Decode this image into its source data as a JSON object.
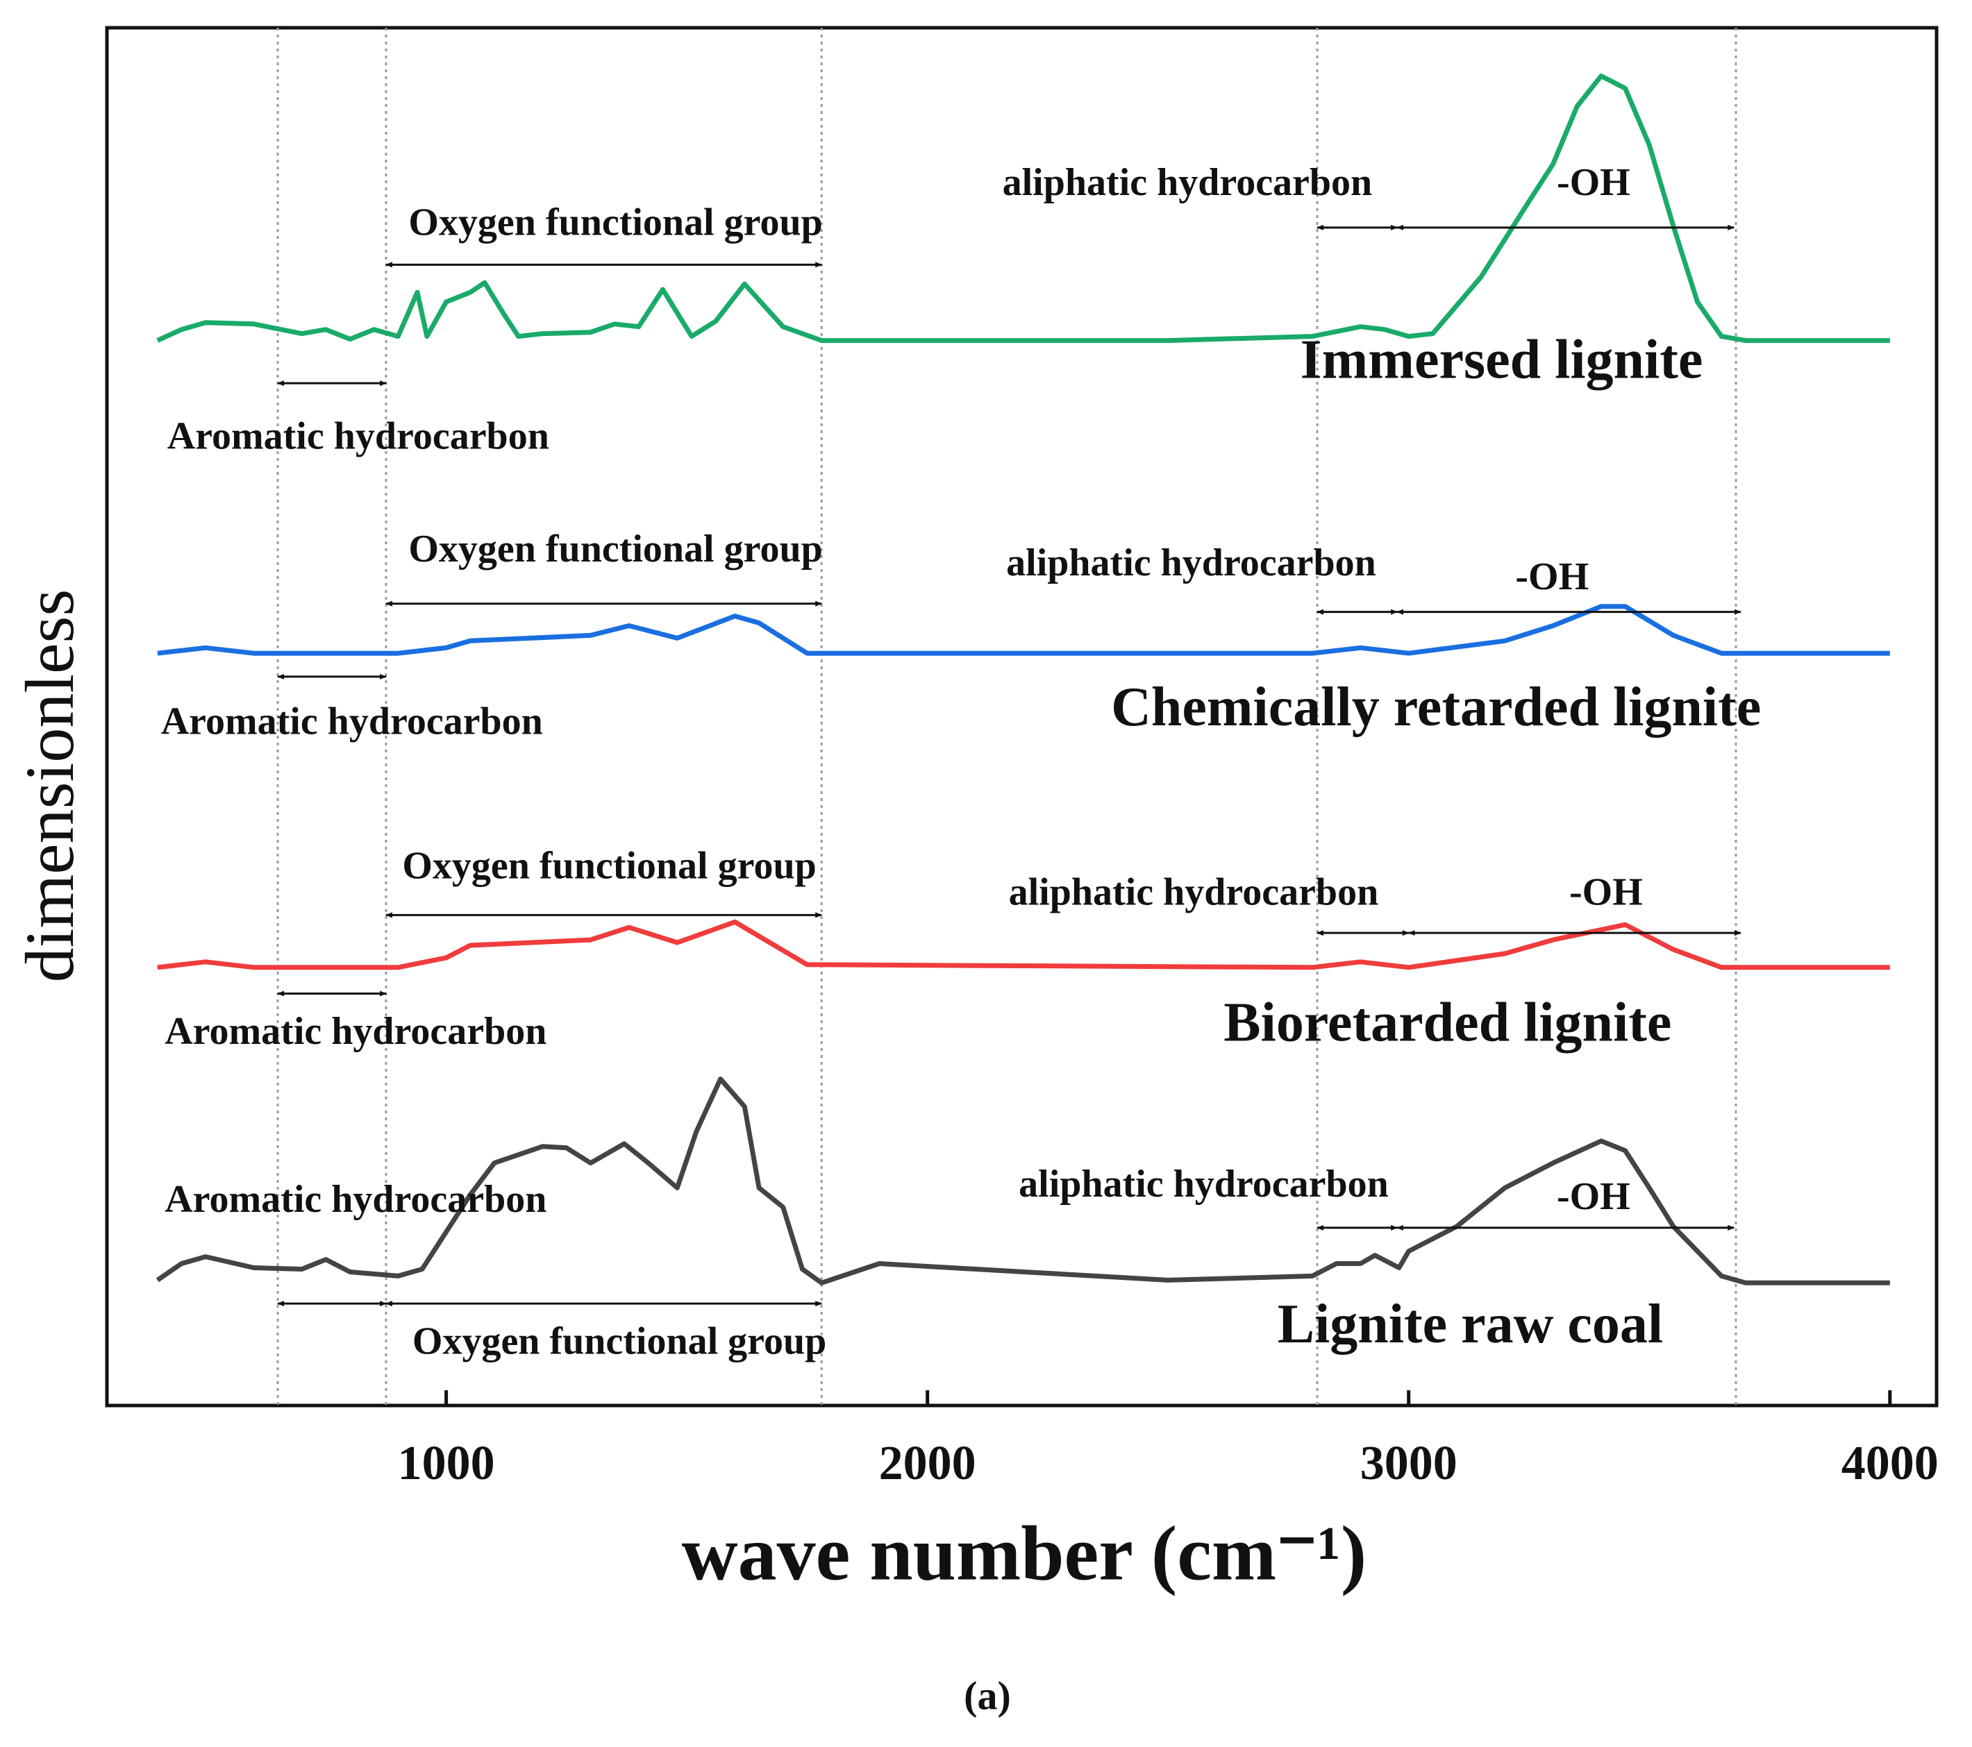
{
  "chart_data": {
    "type": "line",
    "xlabel": "wave number (cm⁻¹)",
    "ylabel": "dimensionless",
    "caption": "(a)",
    "xlim": [
      295,
      4097
    ],
    "ylim": [
      0,
      100
    ],
    "xticks": [
      1000,
      2000,
      3000,
      4000
    ],
    "reference_lines": [
      650,
      875,
      1780,
      2810,
      3680
    ],
    "series": [
      {
        "name": "Immersed lignite",
        "color": "#1aaa6a",
        "x": [
          400,
          450,
          500,
          600,
          700,
          750,
          800,
          850,
          900,
          940,
          960,
          1000,
          1050,
          1080,
          1120,
          1150,
          1200,
          1300,
          1350,
          1400,
          1450,
          1510,
          1560,
          1620,
          1700,
          1780,
          2000,
          2500,
          2800,
          2900,
          2950,
          3000,
          3050,
          3150,
          3250,
          3300,
          3350,
          3400,
          3450,
          3500,
          3550,
          3600,
          3650,
          3700,
          4000
        ],
        "values": [
          77.3,
          78.1,
          78.6,
          78.5,
          77.8,
          78.1,
          77.4,
          78.1,
          77.6,
          80.8,
          77.6,
          80.1,
          80.8,
          81.5,
          79.2,
          77.6,
          77.8,
          77.9,
          78.5,
          78.3,
          81.0,
          77.6,
          78.7,
          81.4,
          78.3,
          77.3,
          77.3,
          77.3,
          77.6,
          78.3,
          78.1,
          77.6,
          77.8,
          81.9,
          87.4,
          90.1,
          94.3,
          96.5,
          95.6,
          91.5,
          85.6,
          80.1,
          77.6,
          77.3,
          77.3
        ],
        "label_at": [
          3193,
          75.5
        ],
        "notes": [
          {
            "text": "Oxygen functional group",
            "at": [
              1352,
              85.6
            ]
          },
          {
            "text": "aliphatic hydrocarbon",
            "at": [
              2540,
              88.5
            ]
          },
          {
            "text": "-OH",
            "at": [
              3384,
              88.5
            ]
          },
          {
            "text": "Aromatic hydrocarbon",
            "at": [
              817,
              70.1
            ]
          }
        ],
        "arrows": [
          [
            875,
            1780,
            82.8
          ],
          [
            2810,
            2976,
            85.5
          ],
          [
            2976,
            3676,
            85.5
          ],
          [
            650,
            875,
            74.2
          ]
        ]
      },
      {
        "name": "Chemically retarded lignite",
        "color": "#1a6fe0",
        "x": [
          400,
          500,
          600,
          900,
          1000,
          1050,
          1300,
          1380,
          1480,
          1600,
          1650,
          1750,
          2800,
          2900,
          3000,
          3200,
          3300,
          3400,
          3450,
          3550,
          3650,
          4000
        ],
        "values": [
          54.6,
          55.0,
          54.6,
          54.6,
          55.0,
          55.5,
          55.9,
          56.6,
          55.7,
          57.3,
          56.8,
          54.6,
          54.6,
          55.0,
          54.6,
          55.5,
          56.6,
          58.0,
          58.0,
          55.9,
          54.6,
          54.6
        ],
        "label_at": [
          3057,
          50.3
        ],
        "notes": [
          {
            "text": "Oxygen functional group",
            "at": [
              1352,
              61.9
            ]
          },
          {
            "text": "aliphatic hydrocarbon",
            "at": [
              2548,
              60.9
            ]
          },
          {
            "text": "-OH",
            "at": [
              3298,
              59.9
            ]
          },
          {
            "text": "Aromatic hydrocarbon",
            "at": [
              804,
              49.4
            ]
          }
        ],
        "arrows": [
          [
            875,
            1780,
            58.2
          ],
          [
            2810,
            2976,
            57.6
          ],
          [
            2976,
            3690,
            57.6
          ],
          [
            650,
            875,
            52.9
          ]
        ]
      },
      {
        "name": "Bioretarded lignite",
        "color": "#f03c3c",
        "x": [
          400,
          500,
          600,
          900,
          1000,
          1050,
          1300,
          1380,
          1480,
          1600,
          1750,
          2800,
          2900,
          3000,
          3200,
          3300,
          3450,
          3550,
          3650,
          4000
        ],
        "values": [
          31.8,
          32.2,
          31.8,
          31.8,
          32.5,
          33.4,
          33.8,
          34.7,
          33.6,
          35.1,
          32.0,
          31.8,
          32.2,
          31.8,
          32.8,
          33.8,
          34.9,
          33.1,
          31.8,
          31.8
        ],
        "label_at": [
          3081,
          27.4
        ],
        "notes": [
          {
            "text": "Oxygen functional group",
            "at": [
              1339,
              38.9
            ]
          },
          {
            "text": "aliphatic hydrocarbon",
            "at": [
              2553,
              37.0
            ]
          },
          {
            "text": "-OH",
            "at": [
              3410,
              37.0
            ]
          },
          {
            "text": "Aromatic hydrocarbon",
            "at": [
              812,
              26.9
            ]
          }
        ],
        "arrows": [
          [
            875,
            1780,
            35.6
          ],
          [
            2810,
            3000,
            34.3
          ],
          [
            3000,
            3690,
            34.3
          ],
          [
            650,
            875,
            29.9
          ]
        ]
      },
      {
        "name": "Lignite raw coal",
        "color": "#444444",
        "x": [
          400,
          450,
          500,
          600,
          700,
          750,
          800,
          900,
          950,
          1000,
          1050,
          1100,
          1200,
          1250,
          1300,
          1370,
          1420,
          1480,
          1520,
          1570,
          1620,
          1650,
          1700,
          1740,
          1780,
          1900,
          2200,
          2500,
          2800,
          2850,
          2900,
          2930,
          2980,
          3000,
          3100,
          3200,
          3300,
          3400,
          3450,
          3500,
          3550,
          3600,
          3650,
          3700,
          4000
        ],
        "values": [
          9.1,
          10.3,
          10.8,
          10.0,
          9.9,
          10.6,
          9.7,
          9.4,
          9.9,
          12.6,
          15.3,
          17.6,
          18.8,
          18.7,
          17.6,
          19.0,
          17.6,
          15.8,
          19.9,
          23.7,
          21.7,
          15.8,
          14.4,
          9.9,
          8.9,
          10.3,
          9.7,
          9.1,
          9.4,
          10.3,
          10.3,
          10.9,
          10.0,
          11.2,
          13.0,
          15.8,
          17.6,
          19.2,
          18.5,
          15.8,
          13.0,
          11.2,
          9.4,
          8.9,
          8.9
        ],
        "label_at": [
          3128,
          5.5
        ],
        "notes": [
          {
            "text": "Aromatic hydrocarbon",
            "at": [
              812,
              14.7
            ]
          },
          {
            "text": "Oxygen functional group",
            "at": [
              1360,
              4.4
            ]
          },
          {
            "text": "aliphatic hydrocarbon",
            "at": [
              2574,
              15.8
            ]
          },
          {
            "text": "-OH",
            "at": [
              3384,
              14.9
            ]
          }
        ],
        "arrows": [
          [
            650,
            875,
            7.4
          ],
          [
            875,
            1780,
            7.4
          ],
          [
            2810,
            2976,
            12.9
          ],
          [
            2976,
            3676,
            12.9
          ]
        ]
      }
    ]
  }
}
